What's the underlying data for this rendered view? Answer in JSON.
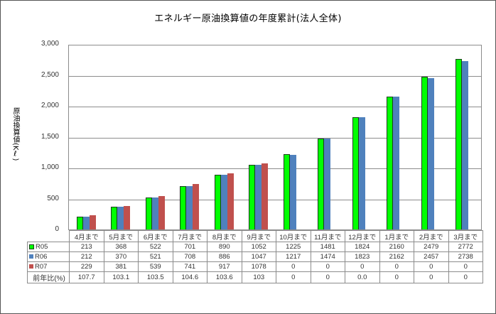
{
  "chart_data": {
    "type": "bar",
    "title": "エネルギー原油換算値の年度累計(法人全体)",
    "xlabel": "",
    "ylabel": "原油換算値(Kℓ)",
    "ylim": [
      0,
      3000
    ],
    "yticks": [
      "3,000",
      "2,500",
      "2,000",
      "1,500",
      "1,000",
      "500",
      "0"
    ],
    "ytick_values": [
      3000,
      2500,
      2000,
      1500,
      1000,
      500,
      0
    ],
    "grid": true,
    "legend_position": "data-table",
    "categories": [
      "4月まで",
      "5月まで",
      "6月まで",
      "7月まで",
      "8月まで",
      "9月まで",
      "10月まで",
      "11月まで",
      "12月まで",
      "1月まで",
      "2月まで",
      "3月まで"
    ],
    "series": [
      {
        "name": "R05",
        "color": "#00ff00",
        "values": [
          213,
          368,
          522,
          701,
          890,
          1052,
          1225,
          1481,
          1824,
          2160,
          2479,
          2772
        ]
      },
      {
        "name": "R06",
        "color": "#4f81bd",
        "values": [
          212,
          370,
          521,
          708,
          886,
          1047,
          1217,
          1474,
          1823,
          2162,
          2457,
          2738
        ]
      },
      {
        "name": "R07",
        "color": "#c0504d",
        "values": [
          229,
          381,
          539,
          741,
          917,
          1078,
          0,
          0,
          0,
          0,
          0,
          0
        ]
      }
    ],
    "ratio_row": {
      "label": "前年比(%)",
      "values": [
        "107.7",
        "103.1",
        "103.5",
        "104.6",
        "103.6",
        "103",
        "0",
        "0",
        "0.0",
        "0",
        "0",
        "0"
      ]
    }
  }
}
